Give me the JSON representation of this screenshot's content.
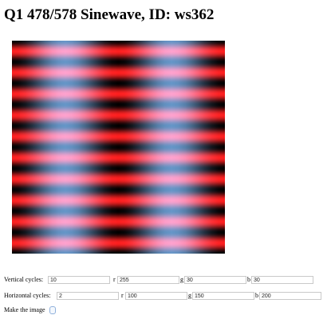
{
  "page": {
    "title": "Q1 478/578 Sinewave, ID: ws362"
  },
  "image": {
    "vertical_cycles": 10,
    "horizontal_cycles": 2,
    "vertical_color": {
      "r": 255,
      "g": 30,
      "b": 30
    },
    "horizontal_color": {
      "r": 100,
      "g": 150,
      "b": 200
    }
  },
  "form": {
    "vertical": {
      "label": "Vertical cycles:",
      "cycles_value": "10",
      "r_label": "r",
      "r_value": "255",
      "g_label": "g",
      "g_value": "30",
      "b_label": "b",
      "b_value": "30"
    },
    "horizontal": {
      "label": "Horizontal cycles:",
      "cycles_value": "2",
      "r_label": "r",
      "r_value": "100",
      "g_label": "g",
      "g_value": "150",
      "b_label": "b",
      "b_value": "200"
    },
    "make_label": "Make the image"
  }
}
